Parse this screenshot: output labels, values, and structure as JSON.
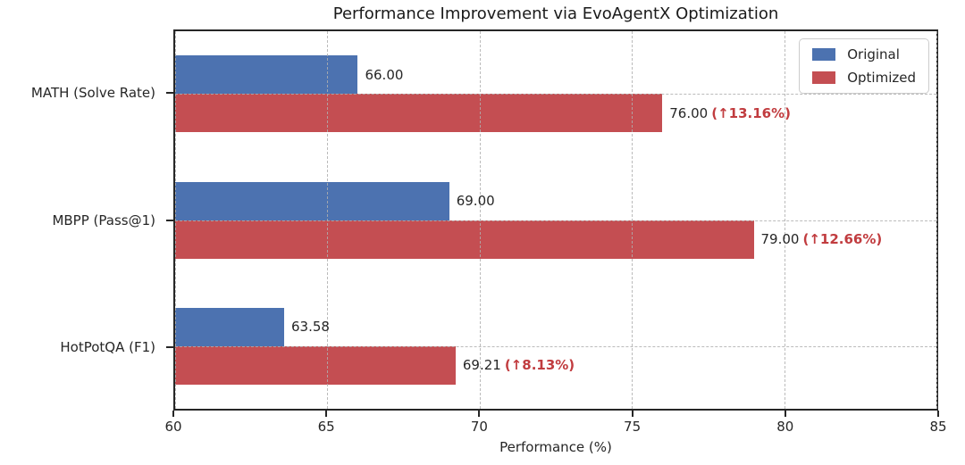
{
  "title": "Performance Improvement via EvoAgentX Optimization",
  "chart_data": {
    "type": "bar",
    "orientation": "horizontal",
    "title": "Performance Improvement via EvoAgentX Optimization",
    "categories": [
      "MATH (Solve Rate)",
      "MBPP (Pass@1)",
      "HotPotQA (F1)"
    ],
    "series": [
      {
        "name": "Original",
        "color": "#4C72B0",
        "values": [
          66.0,
          69.0,
          63.58
        ],
        "labels": [
          "66.00",
          "69.00",
          "63.58"
        ]
      },
      {
        "name": "Optimized",
        "color": "#C44E52",
        "values": [
          76.0,
          79.0,
          69.21
        ],
        "labels": [
          "76.00",
          "79.00",
          "69.21"
        ],
        "annotations": [
          "(↑13.16%)",
          "(↑12.66%)",
          "(↑8.13%)"
        ]
      }
    ],
    "annotation_color": "#c13c3f",
    "xlabel": "Performance (%)",
    "xlim": [
      60,
      85
    ],
    "xticks": [
      60,
      65,
      70,
      75,
      80,
      85
    ],
    "xtick_labels": [
      "60",
      "65",
      "70",
      "75",
      "80",
      "85"
    ],
    "grid": true,
    "grid_style": "dashed",
    "legend_position": "upper right",
    "legend_entries": [
      "Original",
      "Optimized"
    ]
  }
}
